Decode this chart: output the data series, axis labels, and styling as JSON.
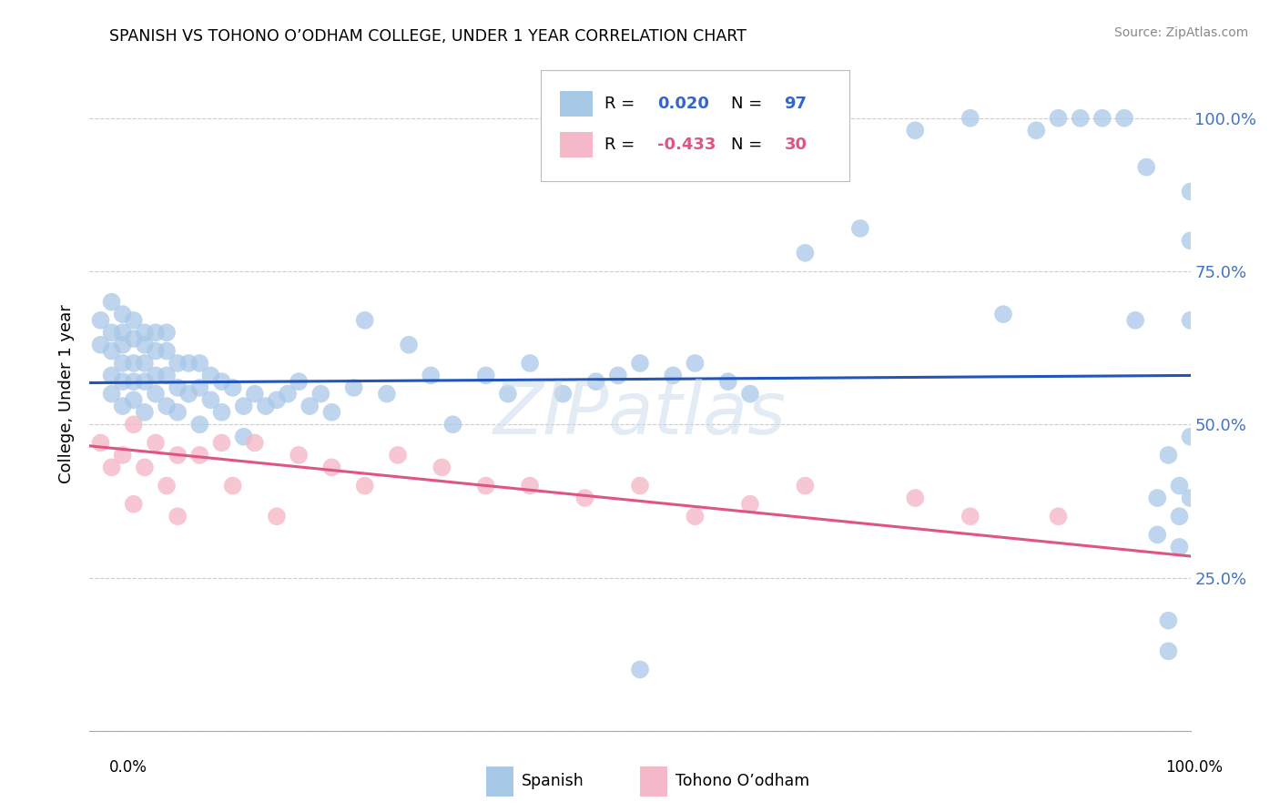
{
  "title": "SPANISH VS TOHONO O’ODHAM COLLEGE, UNDER 1 YEAR CORRELATION CHART",
  "source": "Source: ZipAtlas.com",
  "ylabel": "College, Under 1 year",
  "xlim": [
    0.0,
    1.0
  ],
  "ylim": [
    0.0,
    1.1
  ],
  "yticks": [
    0.0,
    0.25,
    0.5,
    0.75,
    1.0
  ],
  "ytick_labels": [
    "",
    "25.0%",
    "50.0%",
    "75.0%",
    "100.0%"
  ],
  "legend_r_spanish": "0.020",
  "legend_n_spanish": "97",
  "legend_r_tohono": "-0.433",
  "legend_n_tohono": "30",
  "blue_color": "#a8c8e8",
  "pink_color": "#f4b8c8",
  "blue_line_color": "#2255bb",
  "pink_line_color": "#e05580",
  "r_value_color": "#3366cc",
  "pink_r_color": "#e05580",
  "tick_color": "#4472c4",
  "background_color": "#ffffff",
  "grid_color": "#cccccc",
  "spanish_x": [
    0.01,
    0.01,
    0.02,
    0.02,
    0.02,
    0.02,
    0.02,
    0.03,
    0.03,
    0.03,
    0.03,
    0.03,
    0.03,
    0.04,
    0.04,
    0.04,
    0.04,
    0.04,
    0.05,
    0.05,
    0.05,
    0.05,
    0.05,
    0.06,
    0.06,
    0.06,
    0.06,
    0.07,
    0.07,
    0.07,
    0.07,
    0.08,
    0.08,
    0.08,
    0.09,
    0.09,
    0.1,
    0.1,
    0.1,
    0.11,
    0.11,
    0.12,
    0.12,
    0.13,
    0.14,
    0.14,
    0.15,
    0.16,
    0.17,
    0.18,
    0.19,
    0.2,
    0.21,
    0.22,
    0.24,
    0.25,
    0.27,
    0.29,
    0.31,
    0.33,
    0.36,
    0.38,
    0.4,
    0.43,
    0.46,
    0.48,
    0.5,
    0.53,
    0.55,
    0.58,
    0.6,
    0.65,
    0.7,
    0.75,
    0.8,
    0.83,
    0.86,
    0.88,
    0.9,
    0.92,
    0.94,
    0.95,
    0.96,
    0.97,
    0.97,
    0.98,
    0.98,
    0.98,
    0.99,
    0.99,
    0.99,
    1.0,
    1.0,
    1.0,
    1.0,
    1.0,
    0.5
  ],
  "spanish_y": [
    0.67,
    0.63,
    0.7,
    0.65,
    0.62,
    0.58,
    0.55,
    0.68,
    0.65,
    0.63,
    0.6,
    0.57,
    0.53,
    0.67,
    0.64,
    0.6,
    0.57,
    0.54,
    0.65,
    0.63,
    0.6,
    0.57,
    0.52,
    0.65,
    0.62,
    0.58,
    0.55,
    0.65,
    0.62,
    0.58,
    0.53,
    0.6,
    0.56,
    0.52,
    0.6,
    0.55,
    0.6,
    0.56,
    0.5,
    0.58,
    0.54,
    0.57,
    0.52,
    0.56,
    0.53,
    0.48,
    0.55,
    0.53,
    0.54,
    0.55,
    0.57,
    0.53,
    0.55,
    0.52,
    0.56,
    0.67,
    0.55,
    0.63,
    0.58,
    0.5,
    0.58,
    0.55,
    0.6,
    0.55,
    0.57,
    0.58,
    0.6,
    0.58,
    0.6,
    0.57,
    0.55,
    0.78,
    0.82,
    0.98,
    1.0,
    0.68,
    0.98,
    1.0,
    1.0,
    1.0,
    1.0,
    0.67,
    0.92,
    0.38,
    0.32,
    0.18,
    0.13,
    0.45,
    0.4,
    0.35,
    0.3,
    0.38,
    0.48,
    0.67,
    0.8,
    0.88,
    0.1
  ],
  "tohono_x": [
    0.01,
    0.02,
    0.03,
    0.04,
    0.04,
    0.05,
    0.06,
    0.07,
    0.08,
    0.08,
    0.1,
    0.12,
    0.13,
    0.15,
    0.17,
    0.19,
    0.22,
    0.25,
    0.28,
    0.32,
    0.36,
    0.4,
    0.45,
    0.5,
    0.55,
    0.6,
    0.65,
    0.75,
    0.8,
    0.88
  ],
  "tohono_y": [
    0.47,
    0.43,
    0.45,
    0.5,
    0.37,
    0.43,
    0.47,
    0.4,
    0.45,
    0.35,
    0.45,
    0.47,
    0.4,
    0.47,
    0.35,
    0.45,
    0.43,
    0.4,
    0.45,
    0.43,
    0.4,
    0.4,
    0.38,
    0.4,
    0.35,
    0.37,
    0.4,
    0.38,
    0.35,
    0.35
  ],
  "blue_line_y0": 0.568,
  "blue_line_y1": 0.58,
  "pink_line_y0": 0.465,
  "pink_line_y1": 0.285
}
